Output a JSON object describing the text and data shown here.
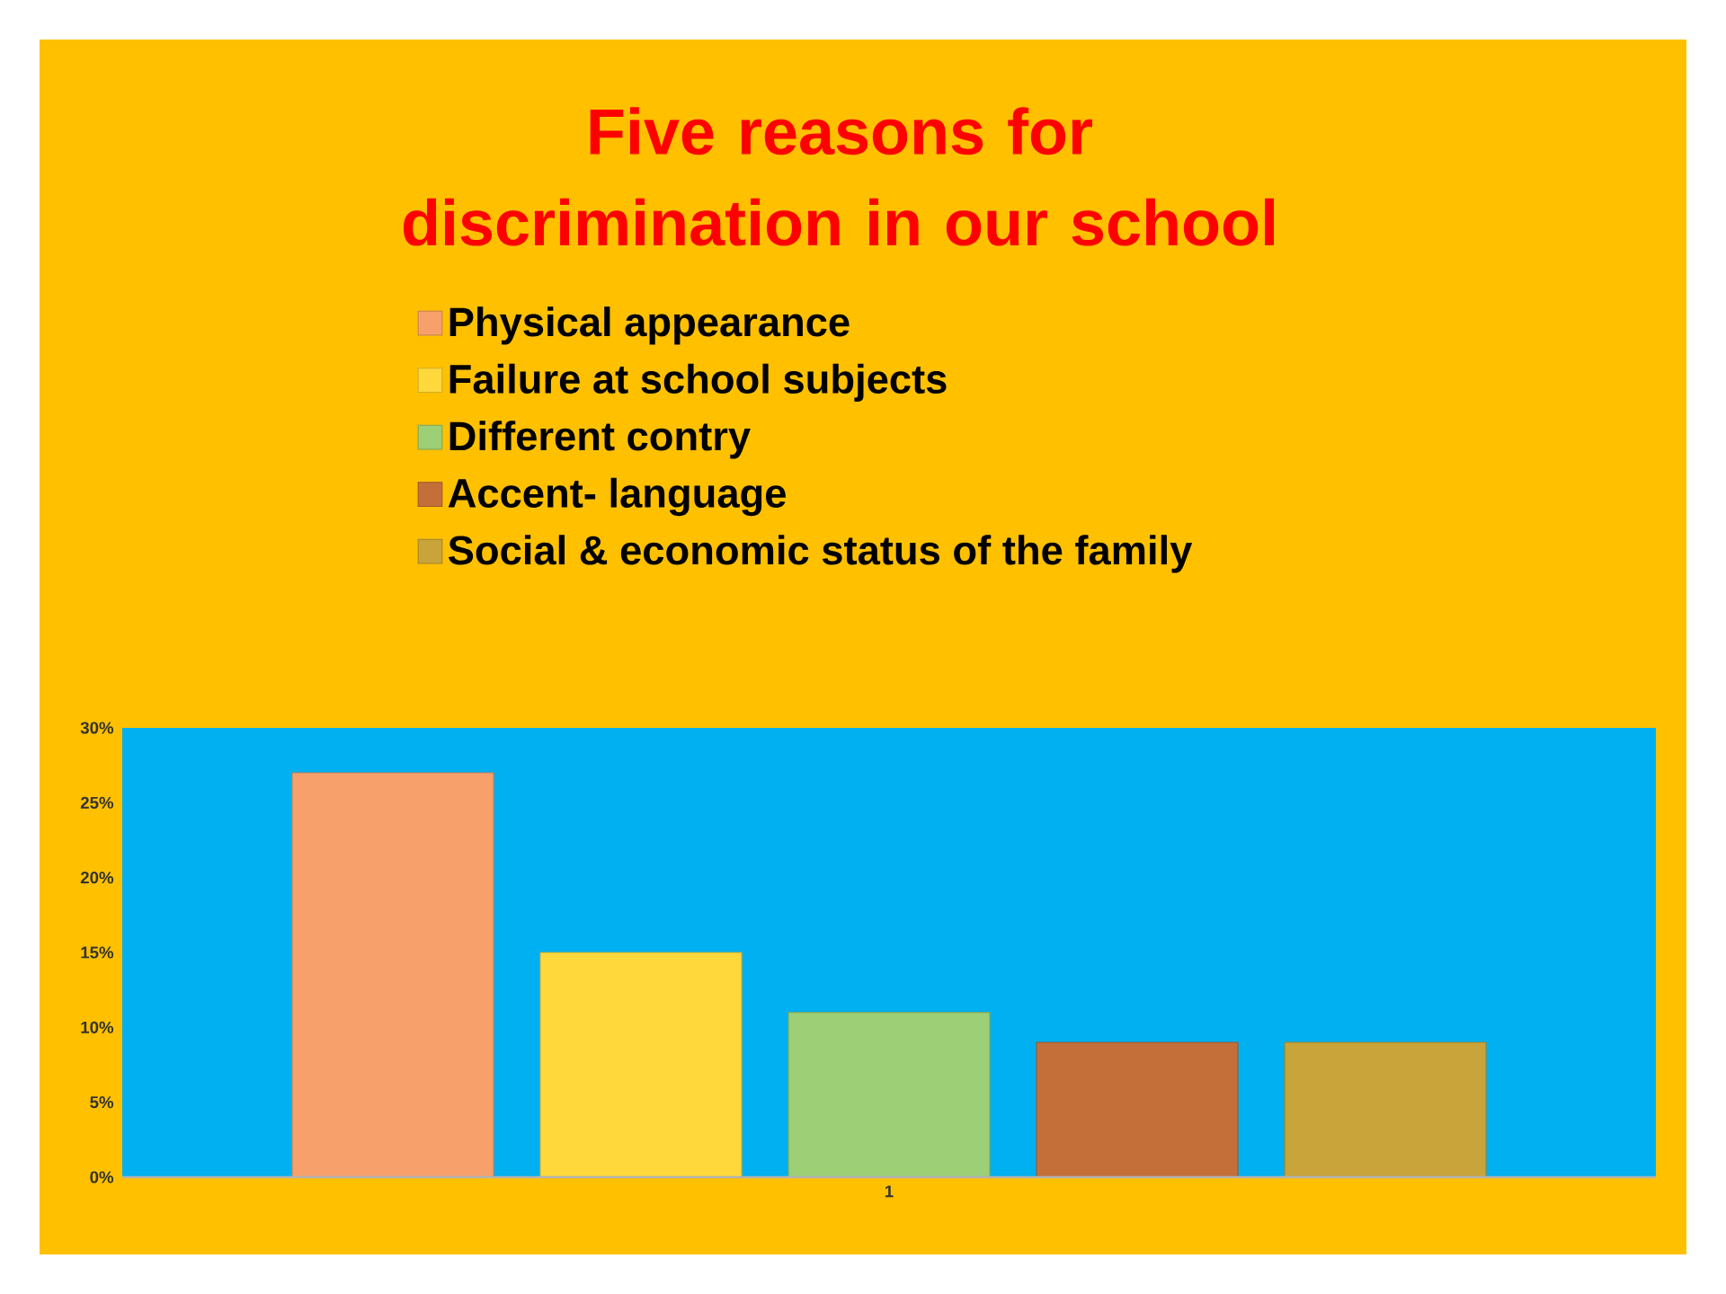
{
  "chart_data": {
    "type": "bar",
    "title": "Five reasons for discrimination in our school",
    "categories": [
      "1"
    ],
    "series": [
      {
        "name": "Physical appearance",
        "color": "#f7a06c",
        "values": [
          27
        ]
      },
      {
        "name": "Failure at school subjects",
        "color": "#ffd83c",
        "values": [
          15
        ]
      },
      {
        "name": "Different contry",
        "color": "#9ccf76",
        "values": [
          11
        ]
      },
      {
        "name": "Accent- language",
        "color": "#c46f3a",
        "values": [
          9
        ]
      },
      {
        "name": "Social & economic status of the family",
        "color": "#c9a43a",
        "values": [
          9
        ]
      }
    ],
    "ylim": [
      0,
      30
    ],
    "yticks": [
      {
        "value": 0,
        "label": "0%"
      },
      {
        "value": 5,
        "label": "5%"
      },
      {
        "value": 10,
        "label": "10%"
      },
      {
        "value": 15,
        "label": "15%"
      },
      {
        "value": 20,
        "label": "20%"
      },
      {
        "value": 25,
        "label": "25%"
      },
      {
        "value": 30,
        "label": "30%"
      }
    ],
    "legend": "top",
    "grid": false
  }
}
